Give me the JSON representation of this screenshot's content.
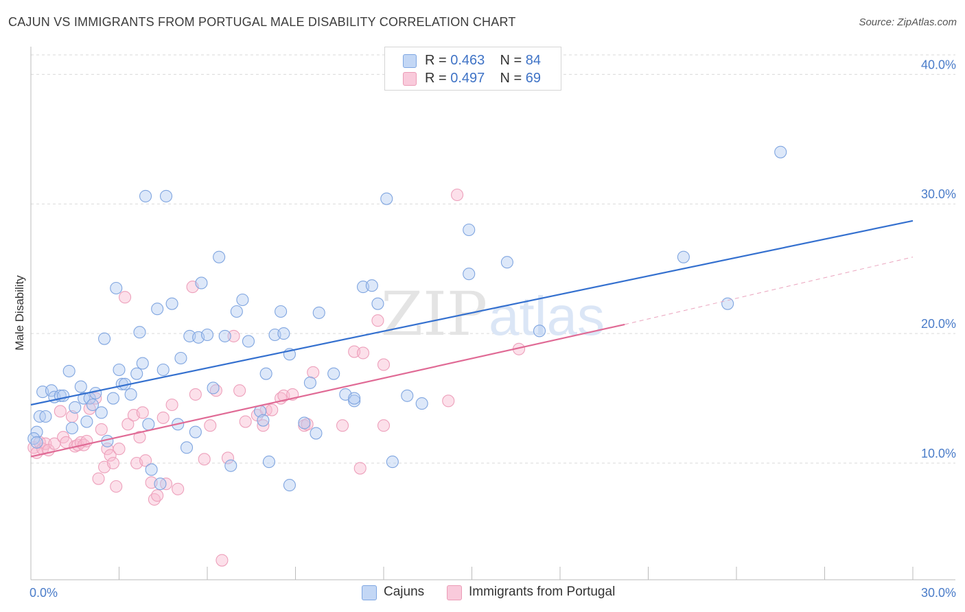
{
  "header": {
    "title": "CAJUN VS IMMIGRANTS FROM PORTUGAL MALE DISABILITY CORRELATION CHART",
    "source": "Source: ZipAtlas.com"
  },
  "legend": {
    "rows": [
      {
        "r_label": "R =",
        "r_value": "0.463",
        "n_label": "N =",
        "n_value": "84"
      },
      {
        "r_label": "R =",
        "r_value": "0.497",
        "n_label": "N =",
        "n_value": "69"
      }
    ]
  },
  "watermark": {
    "zip": "ZIP",
    "atlas": "atlas"
  },
  "chart_data": {
    "type": "scatter",
    "title": "CAJUN VS IMMIGRANTS FROM PORTUGAL MALE DISABILITY CORRELATION CHART",
    "ylabel": "Male Disability",
    "xlabel": "",
    "xlim": [
      0,
      30
    ],
    "ylim": [
      1,
      41.5
    ],
    "x_tick_labels": [
      "0.0%",
      "30.0%"
    ],
    "y_ticks": [
      10,
      20,
      30,
      40
    ],
    "y_tick_labels": [
      "10.0%",
      "20.0%",
      "30.0%",
      "40.0%"
    ],
    "grid": true,
    "legend_position": "top-center",
    "colors": {
      "cajuns": "#5b8fdc",
      "portugal": "#e87da0",
      "cajuns_line": "#3470cf",
      "portugal_line": "#e06a95"
    },
    "series": [
      {
        "name": "Cajuns",
        "r": 0.463,
        "n": 84,
        "trend": {
          "x": [
            0,
            30
          ],
          "y": [
            14.5,
            28.7
          ]
        },
        "points": [
          [
            0.2,
            12.4
          ],
          [
            0.1,
            11.9
          ],
          [
            0.2,
            11.6
          ],
          [
            0.3,
            13.6
          ],
          [
            0.4,
            15.5
          ],
          [
            0.5,
            13.6
          ],
          [
            0.7,
            15.6
          ],
          [
            0.8,
            15.1
          ],
          [
            1.0,
            15.2
          ],
          [
            1.1,
            15.2
          ],
          [
            1.3,
            17.1
          ],
          [
            1.4,
            12.7
          ],
          [
            1.5,
            14.3
          ],
          [
            1.7,
            15.9
          ],
          [
            1.8,
            15.0
          ],
          [
            1.9,
            13.2
          ],
          [
            2.0,
            15.0
          ],
          [
            2.1,
            14.5
          ],
          [
            2.2,
            15.4
          ],
          [
            2.4,
            13.9
          ],
          [
            2.5,
            19.6
          ],
          [
            2.6,
            11.7
          ],
          [
            2.8,
            15.0
          ],
          [
            2.9,
            23.5
          ],
          [
            3.0,
            17.2
          ],
          [
            3.1,
            16.1
          ],
          [
            3.2,
            16.1
          ],
          [
            3.4,
            15.3
          ],
          [
            3.6,
            16.9
          ],
          [
            3.7,
            20.1
          ],
          [
            3.8,
            17.7
          ],
          [
            3.9,
            30.6
          ],
          [
            4.0,
            13.0
          ],
          [
            4.1,
            9.5
          ],
          [
            4.3,
            21.9
          ],
          [
            4.4,
            8.4
          ],
          [
            4.5,
            17.2
          ],
          [
            4.6,
            30.6
          ],
          [
            4.8,
            22.3
          ],
          [
            5.0,
            13.0
          ],
          [
            5.1,
            18.1
          ],
          [
            5.3,
            11.2
          ],
          [
            5.4,
            19.8
          ],
          [
            5.6,
            12.4
          ],
          [
            5.7,
            19.7
          ],
          [
            5.8,
            23.9
          ],
          [
            6.0,
            19.9
          ],
          [
            6.2,
            15.8
          ],
          [
            6.4,
            25.9
          ],
          [
            6.6,
            19.8
          ],
          [
            6.8,
            9.8
          ],
          [
            7.0,
            21.7
          ],
          [
            7.2,
            22.6
          ],
          [
            7.4,
            19.4
          ],
          [
            7.8,
            14.0
          ],
          [
            7.9,
            13.3
          ],
          [
            8.0,
            16.9
          ],
          [
            8.1,
            10.1
          ],
          [
            8.3,
            19.9
          ],
          [
            8.5,
            21.7
          ],
          [
            8.6,
            20.0
          ],
          [
            8.8,
            18.4
          ],
          [
            8.8,
            8.3
          ],
          [
            9.3,
            13.1
          ],
          [
            9.5,
            16.2
          ],
          [
            9.7,
            12.3
          ],
          [
            9.8,
            21.6
          ],
          [
            10.3,
            16.9
          ],
          [
            10.7,
            15.3
          ],
          [
            11.0,
            14.8
          ],
          [
            11.0,
            15.0
          ],
          [
            11.3,
            23.6
          ],
          [
            11.6,
            23.7
          ],
          [
            11.8,
            22.3
          ],
          [
            12.1,
            30.4
          ],
          [
            12.3,
            10.1
          ],
          [
            12.8,
            15.2
          ],
          [
            13.3,
            14.6
          ],
          [
            14.9,
            28.0
          ],
          [
            14.9,
            24.6
          ],
          [
            16.2,
            25.5
          ],
          [
            17.3,
            20.2
          ],
          [
            22.2,
            25.9
          ],
          [
            23.7,
            22.3
          ],
          [
            25.5,
            34.0
          ]
        ]
      },
      {
        "name": "Immigrants from Portugal",
        "r": 0.497,
        "n": 69,
        "trend": {
          "x": [
            0,
            20.2
          ],
          "y": [
            10.5,
            20.7
          ]
        },
        "trend_extension": {
          "x": [
            20.2,
            30
          ],
          "y": [
            20.7,
            25.9
          ]
        },
        "points": [
          [
            0.1,
            11.2
          ],
          [
            0.2,
            10.8
          ],
          [
            0.3,
            11.6
          ],
          [
            0.4,
            11.1
          ],
          [
            0.5,
            11.5
          ],
          [
            0.6,
            11.0
          ],
          [
            0.8,
            11.5
          ],
          [
            1.0,
            14.0
          ],
          [
            1.1,
            12.0
          ],
          [
            1.2,
            11.6
          ],
          [
            1.4,
            13.6
          ],
          [
            1.5,
            11.3
          ],
          [
            1.6,
            11.4
          ],
          [
            1.7,
            11.6
          ],
          [
            1.8,
            11.4
          ],
          [
            1.9,
            11.7
          ],
          [
            2.0,
            14.2
          ],
          [
            2.2,
            15.0
          ],
          [
            2.3,
            8.8
          ],
          [
            2.4,
            12.6
          ],
          [
            2.5,
            9.7
          ],
          [
            2.6,
            11.1
          ],
          [
            2.7,
            10.6
          ],
          [
            2.8,
            10.0
          ],
          [
            2.9,
            8.2
          ],
          [
            3.0,
            11.1
          ],
          [
            3.2,
            22.8
          ],
          [
            3.3,
            13.0
          ],
          [
            3.5,
            13.7
          ],
          [
            3.6,
            10.0
          ],
          [
            3.7,
            12.0
          ],
          [
            3.8,
            13.9
          ],
          [
            3.9,
            10.2
          ],
          [
            4.1,
            8.5
          ],
          [
            4.2,
            7.2
          ],
          [
            4.3,
            7.5
          ],
          [
            4.5,
            13.5
          ],
          [
            4.6,
            8.4
          ],
          [
            4.8,
            14.5
          ],
          [
            5.0,
            8.0
          ],
          [
            5.5,
            23.6
          ],
          [
            5.6,
            15.3
          ],
          [
            5.9,
            10.3
          ],
          [
            6.1,
            12.9
          ],
          [
            6.3,
            15.6
          ],
          [
            6.5,
            2.5
          ],
          [
            6.7,
            10.4
          ],
          [
            6.9,
            19.8
          ],
          [
            7.1,
            15.6
          ],
          [
            7.3,
            13.2
          ],
          [
            7.7,
            13.7
          ],
          [
            7.9,
            12.9
          ],
          [
            8.0,
            14.1
          ],
          [
            8.2,
            14.1
          ],
          [
            8.5,
            15.0
          ],
          [
            8.6,
            15.2
          ],
          [
            8.9,
            15.3
          ],
          [
            9.3,
            12.9
          ],
          [
            9.4,
            13.0
          ],
          [
            9.6,
            17.0
          ],
          [
            10.6,
            12.9
          ],
          [
            11.0,
            18.6
          ],
          [
            11.2,
            9.6
          ],
          [
            11.3,
            18.5
          ],
          [
            11.8,
            21.0
          ],
          [
            12.0,
            12.9
          ],
          [
            12.0,
            17.6
          ],
          [
            14.2,
            14.8
          ],
          [
            16.6,
            18.8
          ],
          [
            14.5,
            30.7
          ]
        ]
      }
    ]
  },
  "bottom_legend": {
    "items": [
      {
        "label": "Cajuns"
      },
      {
        "label": "Immigrants from Portugal"
      }
    ]
  }
}
